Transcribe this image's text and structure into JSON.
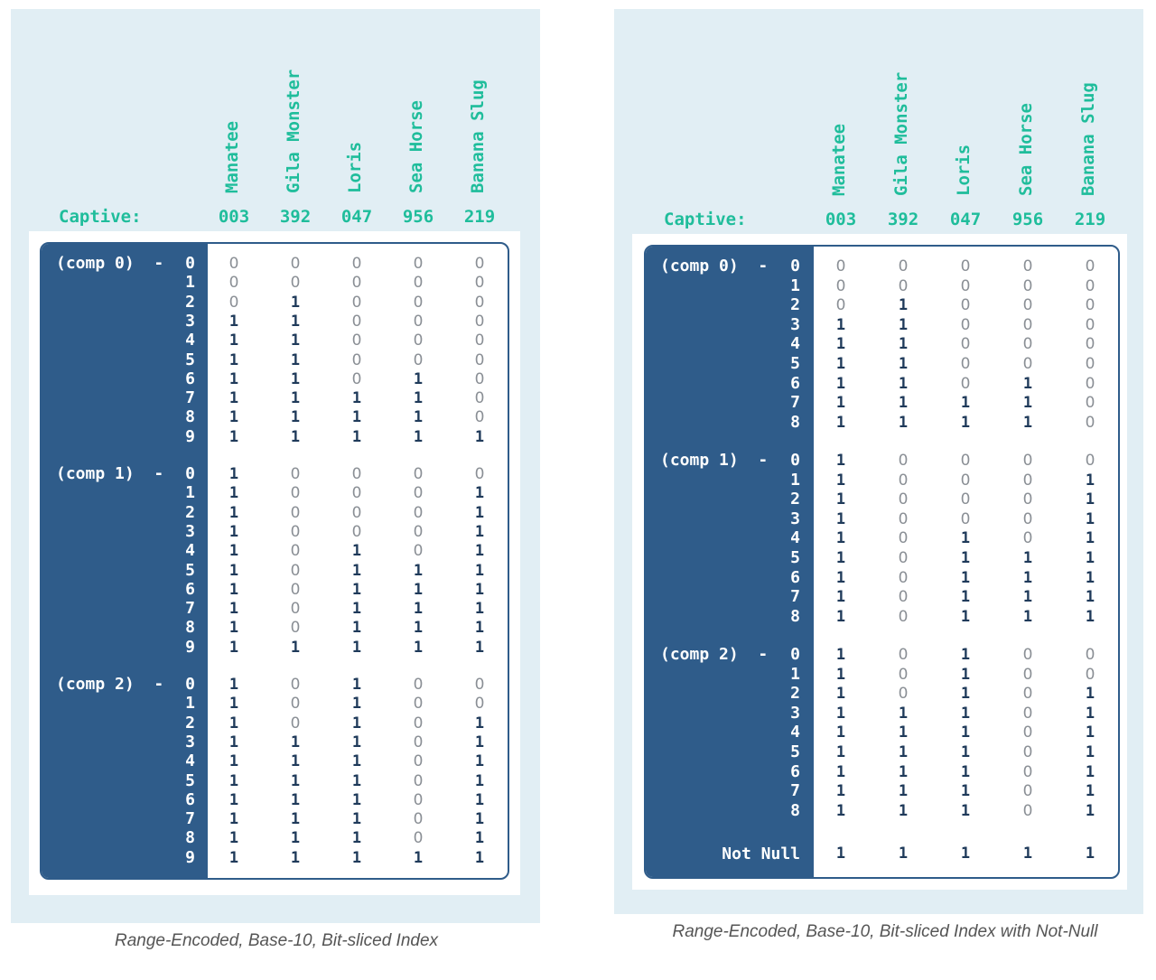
{
  "columns": [
    "Manatee",
    "Gila Monster",
    "Loris",
    "Sea Horse",
    "Banana Slug"
  ],
  "captive_label": "Captive:",
  "captive_codes": [
    "003",
    "392",
    "047",
    "956",
    "219"
  ],
  "not_null_label": "Not Null",
  "digit_labels": [
    "0",
    "1",
    "2",
    "3",
    "4",
    "5",
    "6",
    "7",
    "8",
    "9"
  ],
  "diagrams": [
    {
      "caption": "Range-Encoded, Base-10, Bit-sliced Index",
      "components": [
        {
          "label": "(comp 0)  - ",
          "rows": [
            [
              "0",
              "0",
              "0",
              "0",
              "0"
            ],
            [
              "0",
              "0",
              "0",
              "0",
              "0"
            ],
            [
              "0",
              "1",
              "0",
              "0",
              "0"
            ],
            [
              "1",
              "1",
              "0",
              "0",
              "0"
            ],
            [
              "1",
              "1",
              "0",
              "0",
              "0"
            ],
            [
              "1",
              "1",
              "0",
              "0",
              "0"
            ],
            [
              "1",
              "1",
              "0",
              "1",
              "0"
            ],
            [
              "1",
              "1",
              "1",
              "1",
              "0"
            ],
            [
              "1",
              "1",
              "1",
              "1",
              "0"
            ],
            [
              "1",
              "1",
              "1",
              "1",
              "1"
            ]
          ]
        },
        {
          "label": "(comp 1)  - ",
          "rows": [
            [
              "1",
              "0",
              "0",
              "0",
              "0"
            ],
            [
              "1",
              "0",
              "0",
              "0",
              "1"
            ],
            [
              "1",
              "0",
              "0",
              "0",
              "1"
            ],
            [
              "1",
              "0",
              "0",
              "0",
              "1"
            ],
            [
              "1",
              "0",
              "1",
              "0",
              "1"
            ],
            [
              "1",
              "0",
              "1",
              "1",
              "1"
            ],
            [
              "1",
              "0",
              "1",
              "1",
              "1"
            ],
            [
              "1",
              "0",
              "1",
              "1",
              "1"
            ],
            [
              "1",
              "0",
              "1",
              "1",
              "1"
            ],
            [
              "1",
              "1",
              "1",
              "1",
              "1"
            ]
          ]
        },
        {
          "label": "(comp 2)  - ",
          "rows": [
            [
              "1",
              "0",
              "1",
              "0",
              "0"
            ],
            [
              "1",
              "0",
              "1",
              "0",
              "0"
            ],
            [
              "1",
              "0",
              "1",
              "0",
              "1"
            ],
            [
              "1",
              "1",
              "1",
              "0",
              "1"
            ],
            [
              "1",
              "1",
              "1",
              "0",
              "1"
            ],
            [
              "1",
              "1",
              "1",
              "0",
              "1"
            ],
            [
              "1",
              "1",
              "1",
              "0",
              "1"
            ],
            [
              "1",
              "1",
              "1",
              "0",
              "1"
            ],
            [
              "1",
              "1",
              "1",
              "0",
              "1"
            ],
            [
              "1",
              "1",
              "1",
              "1",
              "1"
            ]
          ]
        }
      ]
    },
    {
      "caption": "Range-Encoded, Base-10, Bit-sliced Index with Not-Null",
      "components": [
        {
          "label": "(comp 0)  - ",
          "rows": [
            [
              "0",
              "0",
              "0",
              "0",
              "0"
            ],
            [
              "0",
              "0",
              "0",
              "0",
              "0"
            ],
            [
              "0",
              "1",
              "0",
              "0",
              "0"
            ],
            [
              "1",
              "1",
              "0",
              "0",
              "0"
            ],
            [
              "1",
              "1",
              "0",
              "0",
              "0"
            ],
            [
              "1",
              "1",
              "0",
              "0",
              "0"
            ],
            [
              "1",
              "1",
              "0",
              "1",
              "0"
            ],
            [
              "1",
              "1",
              "1",
              "1",
              "0"
            ],
            [
              "1",
              "1",
              "1",
              "1",
              "0"
            ]
          ]
        },
        {
          "label": "(comp 1)  - ",
          "rows": [
            [
              "1",
              "0",
              "0",
              "0",
              "0"
            ],
            [
              "1",
              "0",
              "0",
              "0",
              "1"
            ],
            [
              "1",
              "0",
              "0",
              "0",
              "1"
            ],
            [
              "1",
              "0",
              "0",
              "0",
              "1"
            ],
            [
              "1",
              "0",
              "1",
              "0",
              "1"
            ],
            [
              "1",
              "0",
              "1",
              "1",
              "1"
            ],
            [
              "1",
              "0",
              "1",
              "1",
              "1"
            ],
            [
              "1",
              "0",
              "1",
              "1",
              "1"
            ],
            [
              "1",
              "0",
              "1",
              "1",
              "1"
            ]
          ]
        },
        {
          "label": "(comp 2)  - ",
          "rows": [
            [
              "1",
              "0",
              "1",
              "0",
              "0"
            ],
            [
              "1",
              "0",
              "1",
              "0",
              "0"
            ],
            [
              "1",
              "0",
              "1",
              "0",
              "1"
            ],
            [
              "1",
              "1",
              "1",
              "0",
              "1"
            ],
            [
              "1",
              "1",
              "1",
              "0",
              "1"
            ],
            [
              "1",
              "1",
              "1",
              "0",
              "1"
            ],
            [
              "1",
              "1",
              "1",
              "0",
              "1"
            ],
            [
              "1",
              "1",
              "1",
              "0",
              "1"
            ],
            [
              "1",
              "1",
              "1",
              "0",
              "1"
            ]
          ]
        }
      ],
      "not_null_row": [
        "1",
        "1",
        "1",
        "1",
        "1"
      ]
    }
  ]
}
